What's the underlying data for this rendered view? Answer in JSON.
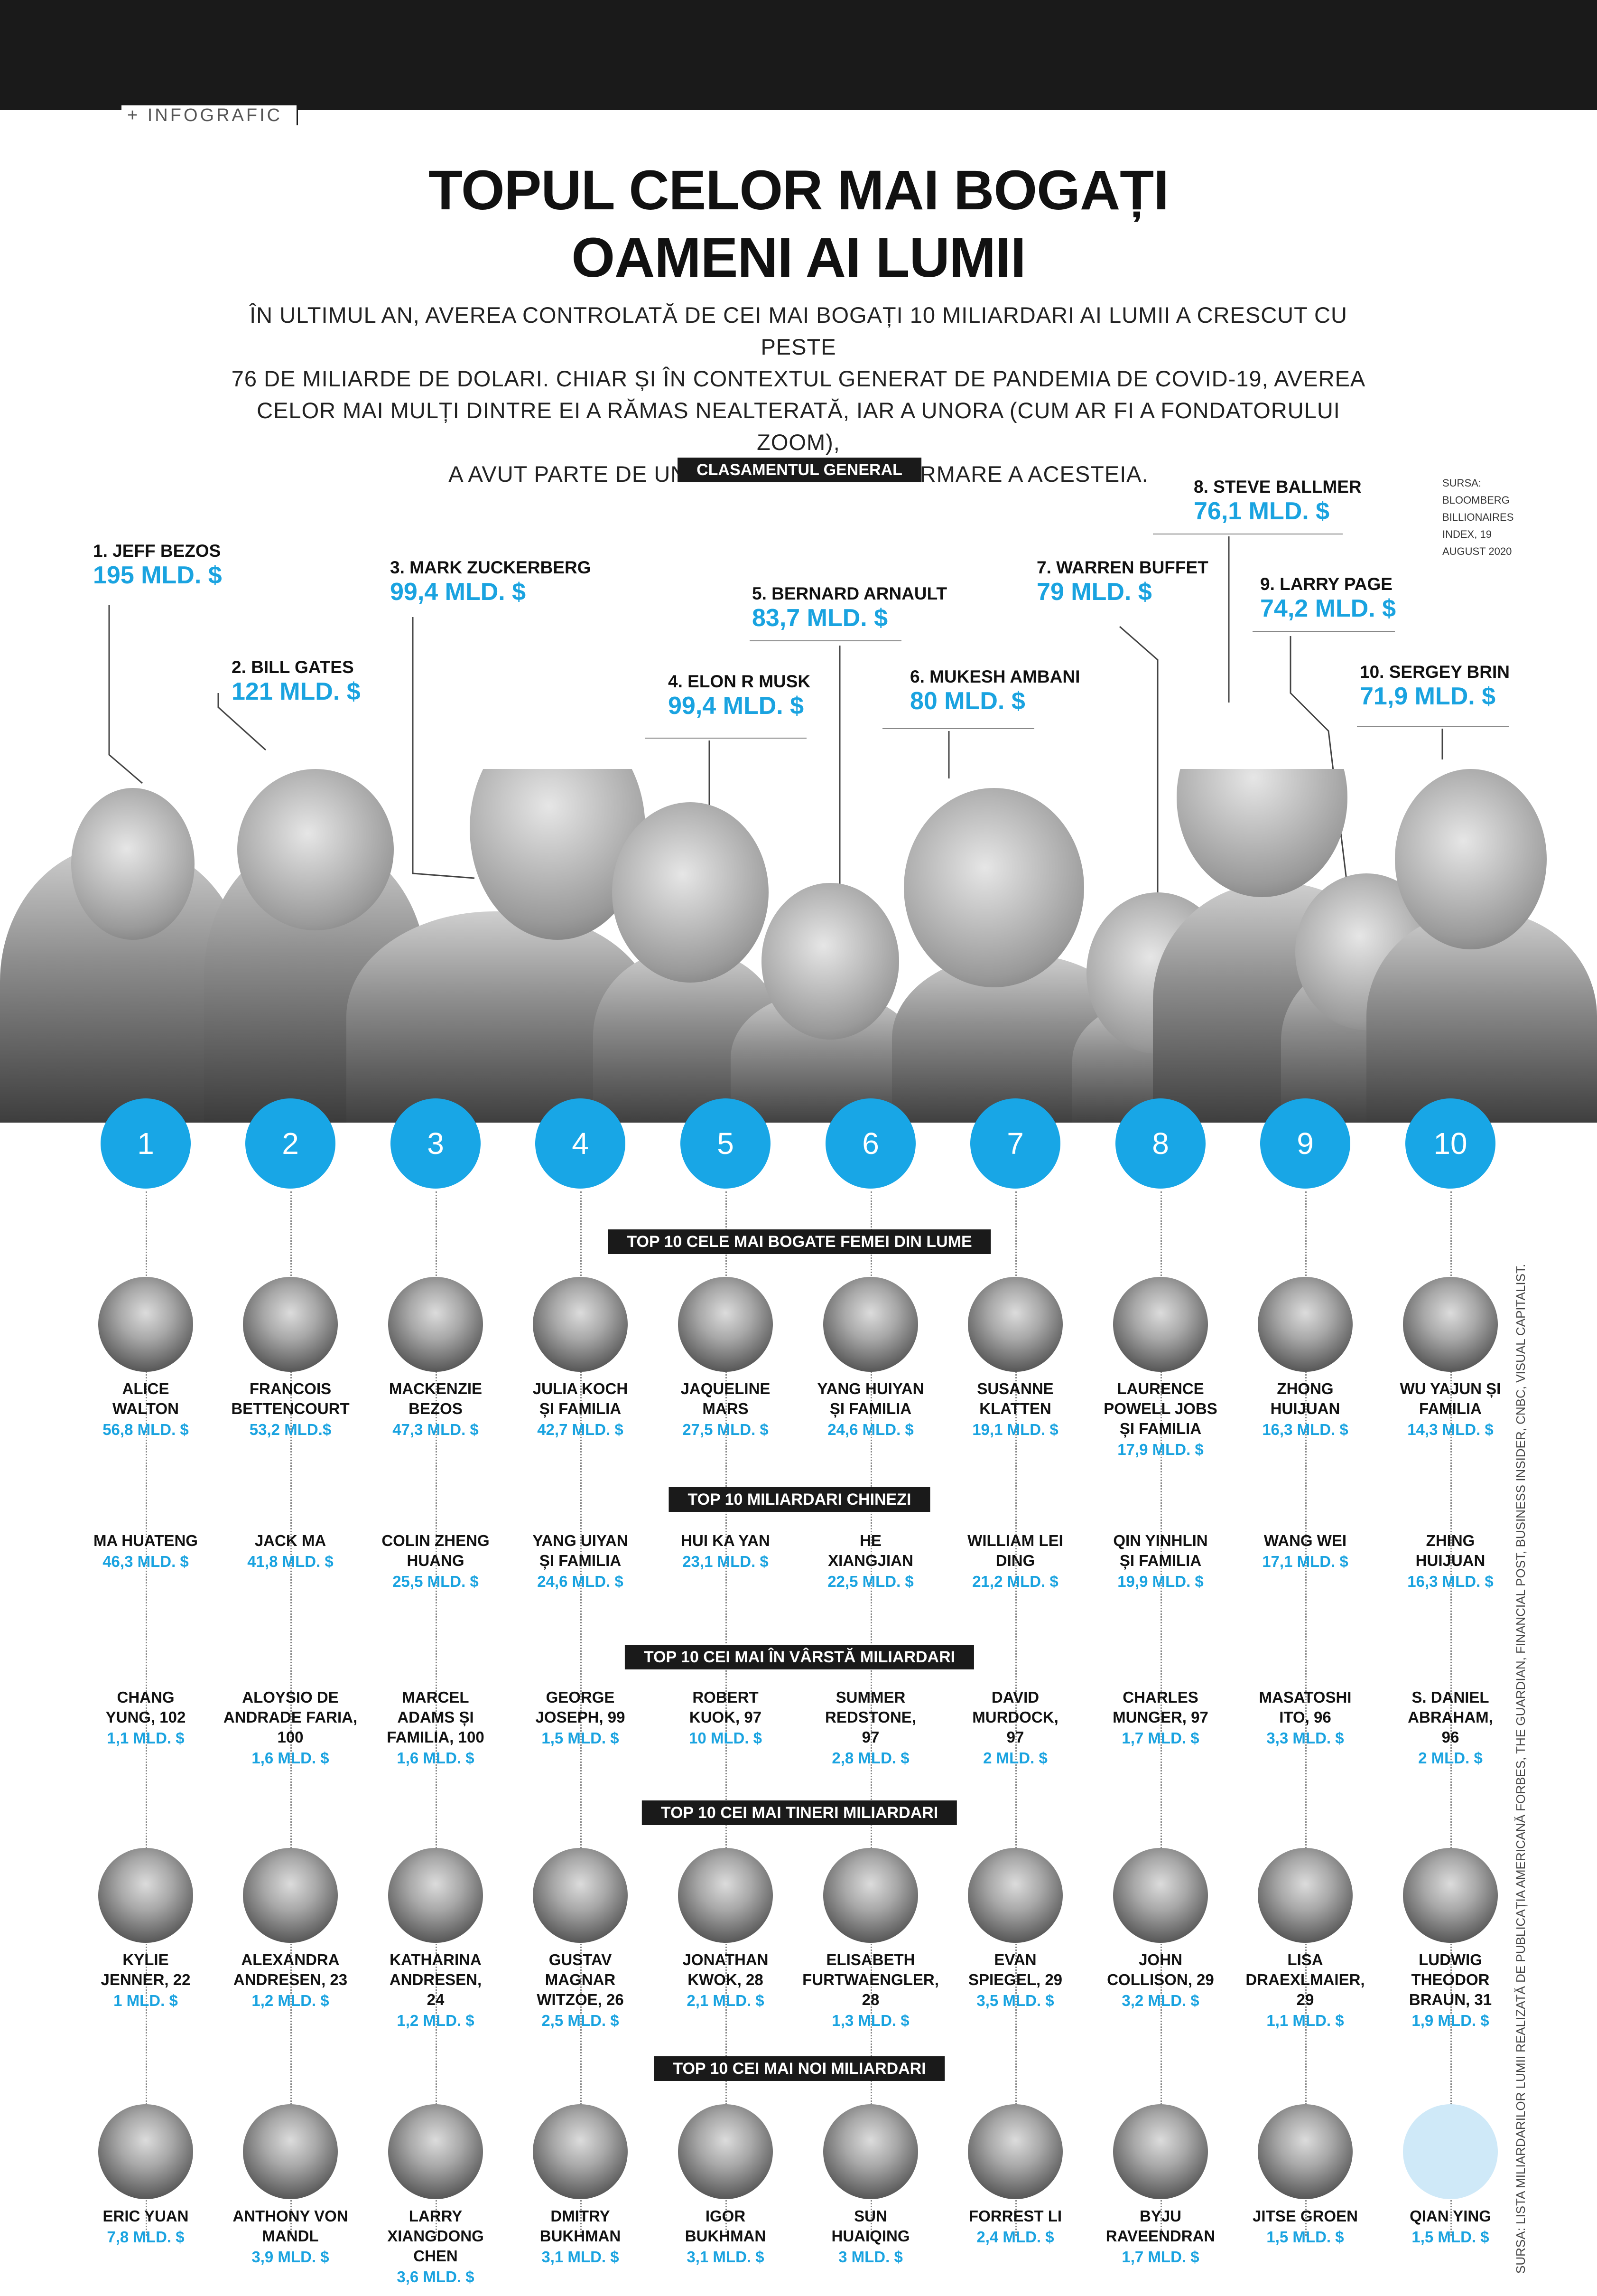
{
  "section_tag": "+ INFOGRAFIC",
  "title_line1": "TOPUL CELOR MAI BOGAȚI",
  "title_line2": "OAMENI AI LUMII",
  "intro": [
    "ÎN ULTIMUL AN, AVEREA CONTROLATĂ DE CEI MAI BOGAȚI 10 MILIARDARI AI LUMII A CRESCUT CU PESTE",
    "76 DE MILIARDE DE DOLARI. CHIAR ȘI ÎN CONTEXTUL GENERAT DE PANDEMIA DE COVID-19, AVEREA",
    "CELOR MAI MULȚI DINTRE EI A RĂMAS NEALTERATĂ, IAR A UNORA (CUM AR FI A FONDATORULUI ZOOM),",
    "A AVUT PARTE DE UN BOOM TOCMAI CA URMARE A ACESTEIA."
  ],
  "source": [
    "SURSA:",
    "BLOOMBERG",
    "BILLIONAIRES",
    "INDEX, 19",
    "AUGUST 2020"
  ],
  "general": {
    "header": "CLASAMENTUL GENERAL",
    "people": [
      {
        "name": "1. JEFF BEZOS",
        "worth": "195 MLD. $"
      },
      {
        "name": "2. BILL GATES",
        "worth": "121 MLD. $"
      },
      {
        "name": "3. MARK ZUCKERBERG",
        "worth": "99,4 MLD. $"
      },
      {
        "name": "4. ELON R MUSK",
        "worth": "99,4 MLD. $"
      },
      {
        "name": "5. BERNARD ARNAULT",
        "worth": "83,7 MLD. $"
      },
      {
        "name": "6. MUKESH AMBANI",
        "worth": "80 MLD. $"
      },
      {
        "name": "7. WARREN BUFFET",
        "worth": "79 MLD. $"
      },
      {
        "name": "8. STEVE BALLMER",
        "worth": "76,1 MLD. $"
      },
      {
        "name": "9. LARRY PAGE",
        "worth": "74,2 MLD. $"
      },
      {
        "name": "10.  SERGEY BRIN",
        "worth": "71,9 MLD. $"
      }
    ]
  },
  "ranks": [
    "1",
    "2",
    "3",
    "4",
    "5",
    "6",
    "7",
    "8",
    "9",
    "10"
  ],
  "women": {
    "header": "TOP 10 CELE MAI BOGATE FEMEI DIN LUME",
    "people": [
      {
        "name": "ALICE\nWALTON",
        "worth": "56,8 MLD. $"
      },
      {
        "name": "FRANCOIS\nBETTENCOURT",
        "worth": "53,2 MLD.$"
      },
      {
        "name": "MACKENZIE\nBEZOS",
        "worth": "47,3 MLD. $"
      },
      {
        "name": "JULIA KOCH\nȘI FAMILIA",
        "worth": "42,7 MLD. $"
      },
      {
        "name": "JAQUELINE\nMARS",
        "worth": "27,5 MLD. $"
      },
      {
        "name": "YANG HUIYAN\nȘI FAMILIA",
        "worth": "24,6 MLD. $"
      },
      {
        "name": "SUSANNE\nKLATTEN",
        "worth": "19,1 MLD. $"
      },
      {
        "name": "LAURENCE\nPOWELL JOBS\nȘI FAMILIA",
        "worth": "17,9 MLD. $"
      },
      {
        "name": "ZHONG\nHUIJUAN",
        "worth": "16,3 MLD. $"
      },
      {
        "name": "WU YAJUN ȘI\nFAMILIA",
        "worth": "14,3 MLD. $"
      }
    ]
  },
  "chinese": {
    "header": "TOP 10 MILIARDARI CHINEZI",
    "people": [
      {
        "name": "MA HUATENG",
        "worth": "46,3 MLD. $"
      },
      {
        "name": "JACK MA",
        "worth": "41,8 MLD. $"
      },
      {
        "name": "COLIN ZHENG\nHUANG",
        "worth": "25,5 MLD. $"
      },
      {
        "name": "YANG UIYAN\nȘI FAMILIA",
        "worth": "24,6 MLD. $"
      },
      {
        "name": "HUI KA YAN",
        "worth": "23,1 MLD. $"
      },
      {
        "name": "HE\nXIANGJIAN",
        "worth": "22,5 MLD. $"
      },
      {
        "name": "WILLIAM LEI\nDING",
        "worth": "21,2 MLD. $"
      },
      {
        "name": "QIN YINHLIN\nȘI FAMILIA",
        "worth": "19,9 MLD. $"
      },
      {
        "name": "WANG WEI",
        "worth": "17,1 MLD. $"
      },
      {
        "name": "ZHING\nHUIJUAN",
        "worth": "16,3 MLD. $"
      }
    ]
  },
  "oldest": {
    "header": "TOP 10 CEI MAI ÎN VÂRSTĂ MILIARDARI",
    "people": [
      {
        "name": "CHANG\nYUNG, 102",
        "worth": "1,1 MLD. $"
      },
      {
        "name": "ALOYSIO DE\nANDRADE FARIA,\n100",
        "worth": "1,6 MLD. $"
      },
      {
        "name": "MARCEL\nADAMS ȘI\nFAMILIA, 100",
        "worth": "1,6 MLD. $"
      },
      {
        "name": "GEORGE\nJOSEPH, 99",
        "worth": "1,5 MLD. $"
      },
      {
        "name": "ROBERT\nKUOK, 97",
        "worth": "10 MLD. $"
      },
      {
        "name": "SUMMER\nREDSTONE,\n97",
        "worth": "2,8 MLD. $"
      },
      {
        "name": "DAVID\nMURDOCK,\n97",
        "worth": "2 MLD. $"
      },
      {
        "name": "CHARLES\nMUNGER, 97",
        "worth": "1,7 MLD. $"
      },
      {
        "name": "MASATOSHI\nITO, 96",
        "worth": "3,3 MLD. $"
      },
      {
        "name": "S. DANIEL\nABRAHAM,\n96",
        "worth": "2 MLD. $"
      }
    ]
  },
  "youngest": {
    "header": "TOP 10 CEI MAI TINERI MILIARDARI",
    "people": [
      {
        "name": "KYLIE\nJENNER, 22",
        "worth": "1 MLD. $"
      },
      {
        "name": "ALEXANDRA\nANDRESEN, 23",
        "worth": "1,2 MLD. $"
      },
      {
        "name": "KATHARINA\nANDRESEN,\n24",
        "worth": "1,2 MLD. $"
      },
      {
        "name": "GUSTAV\nMAGNAR\nWITZOE, 26",
        "worth": "2,5 MLD. $"
      },
      {
        "name": "JONATHAN\nKWOK, 28",
        "worth": "2,1 MLD. $"
      },
      {
        "name": "ELISABETH\nFURTWAENGLER,\n28",
        "worth": "1,3 MLD. $"
      },
      {
        "name": "EVAN\nSPIEGEL, 29",
        "worth": "3,5 MLD. $"
      },
      {
        "name": "JOHN\nCOLLISON, 29",
        "worth": "3,2 MLD. $"
      },
      {
        "name": "LISA\nDRAEXLMAIER,\n29",
        "worth": "1,1 MLD. $"
      },
      {
        "name": "LUDWIG\nTHEODOR\nBRAUN, 31",
        "worth": "1,9 MLD. $"
      }
    ]
  },
  "newest": {
    "header": "TOP 10 CEI MAI NOI MILIARDARI",
    "people": [
      {
        "name": "ERIC YUAN",
        "worth": "7,8 MLD. $"
      },
      {
        "name": "ANTHONY VON\nMANDL",
        "worth": "3,9 MLD. $"
      },
      {
        "name": "LARRY\nXIANGDONG\nCHEN",
        "worth": "3,6 MLD. $"
      },
      {
        "name": "DMITRY\nBUKHMAN",
        "worth": "3,1 MLD. $"
      },
      {
        "name": "IGOR\nBUKHMAN",
        "worth": "3,1 MLD. $"
      },
      {
        "name": "SUN\nHUAIQING",
        "worth": "3 MLD. $"
      },
      {
        "name": "FORREST LI",
        "worth": "2,4 MLD. $"
      },
      {
        "name": "BYJU\nRAVEENDRAN",
        "worth": "1,7 MLD. $"
      },
      {
        "name": "JITSE GROEN",
        "worth": "1,5 MLD. $"
      },
      {
        "name": "QIAN YING",
        "worth": "1,5 MLD. $"
      }
    ]
  },
  "sidenote": "SURSA: LISTA MILIARDARILOR LUMII REALIZATĂ DE PUBLICAȚIA AMERICANĂ FORBES, THE GUARDIAN, FINANCIAL POST, BUSINESS INSIDER, CNBC, VISUAL CAPITALIST.",
  "colors": {
    "accent": "#18a6e6",
    "dark": "#1a1a1a"
  }
}
